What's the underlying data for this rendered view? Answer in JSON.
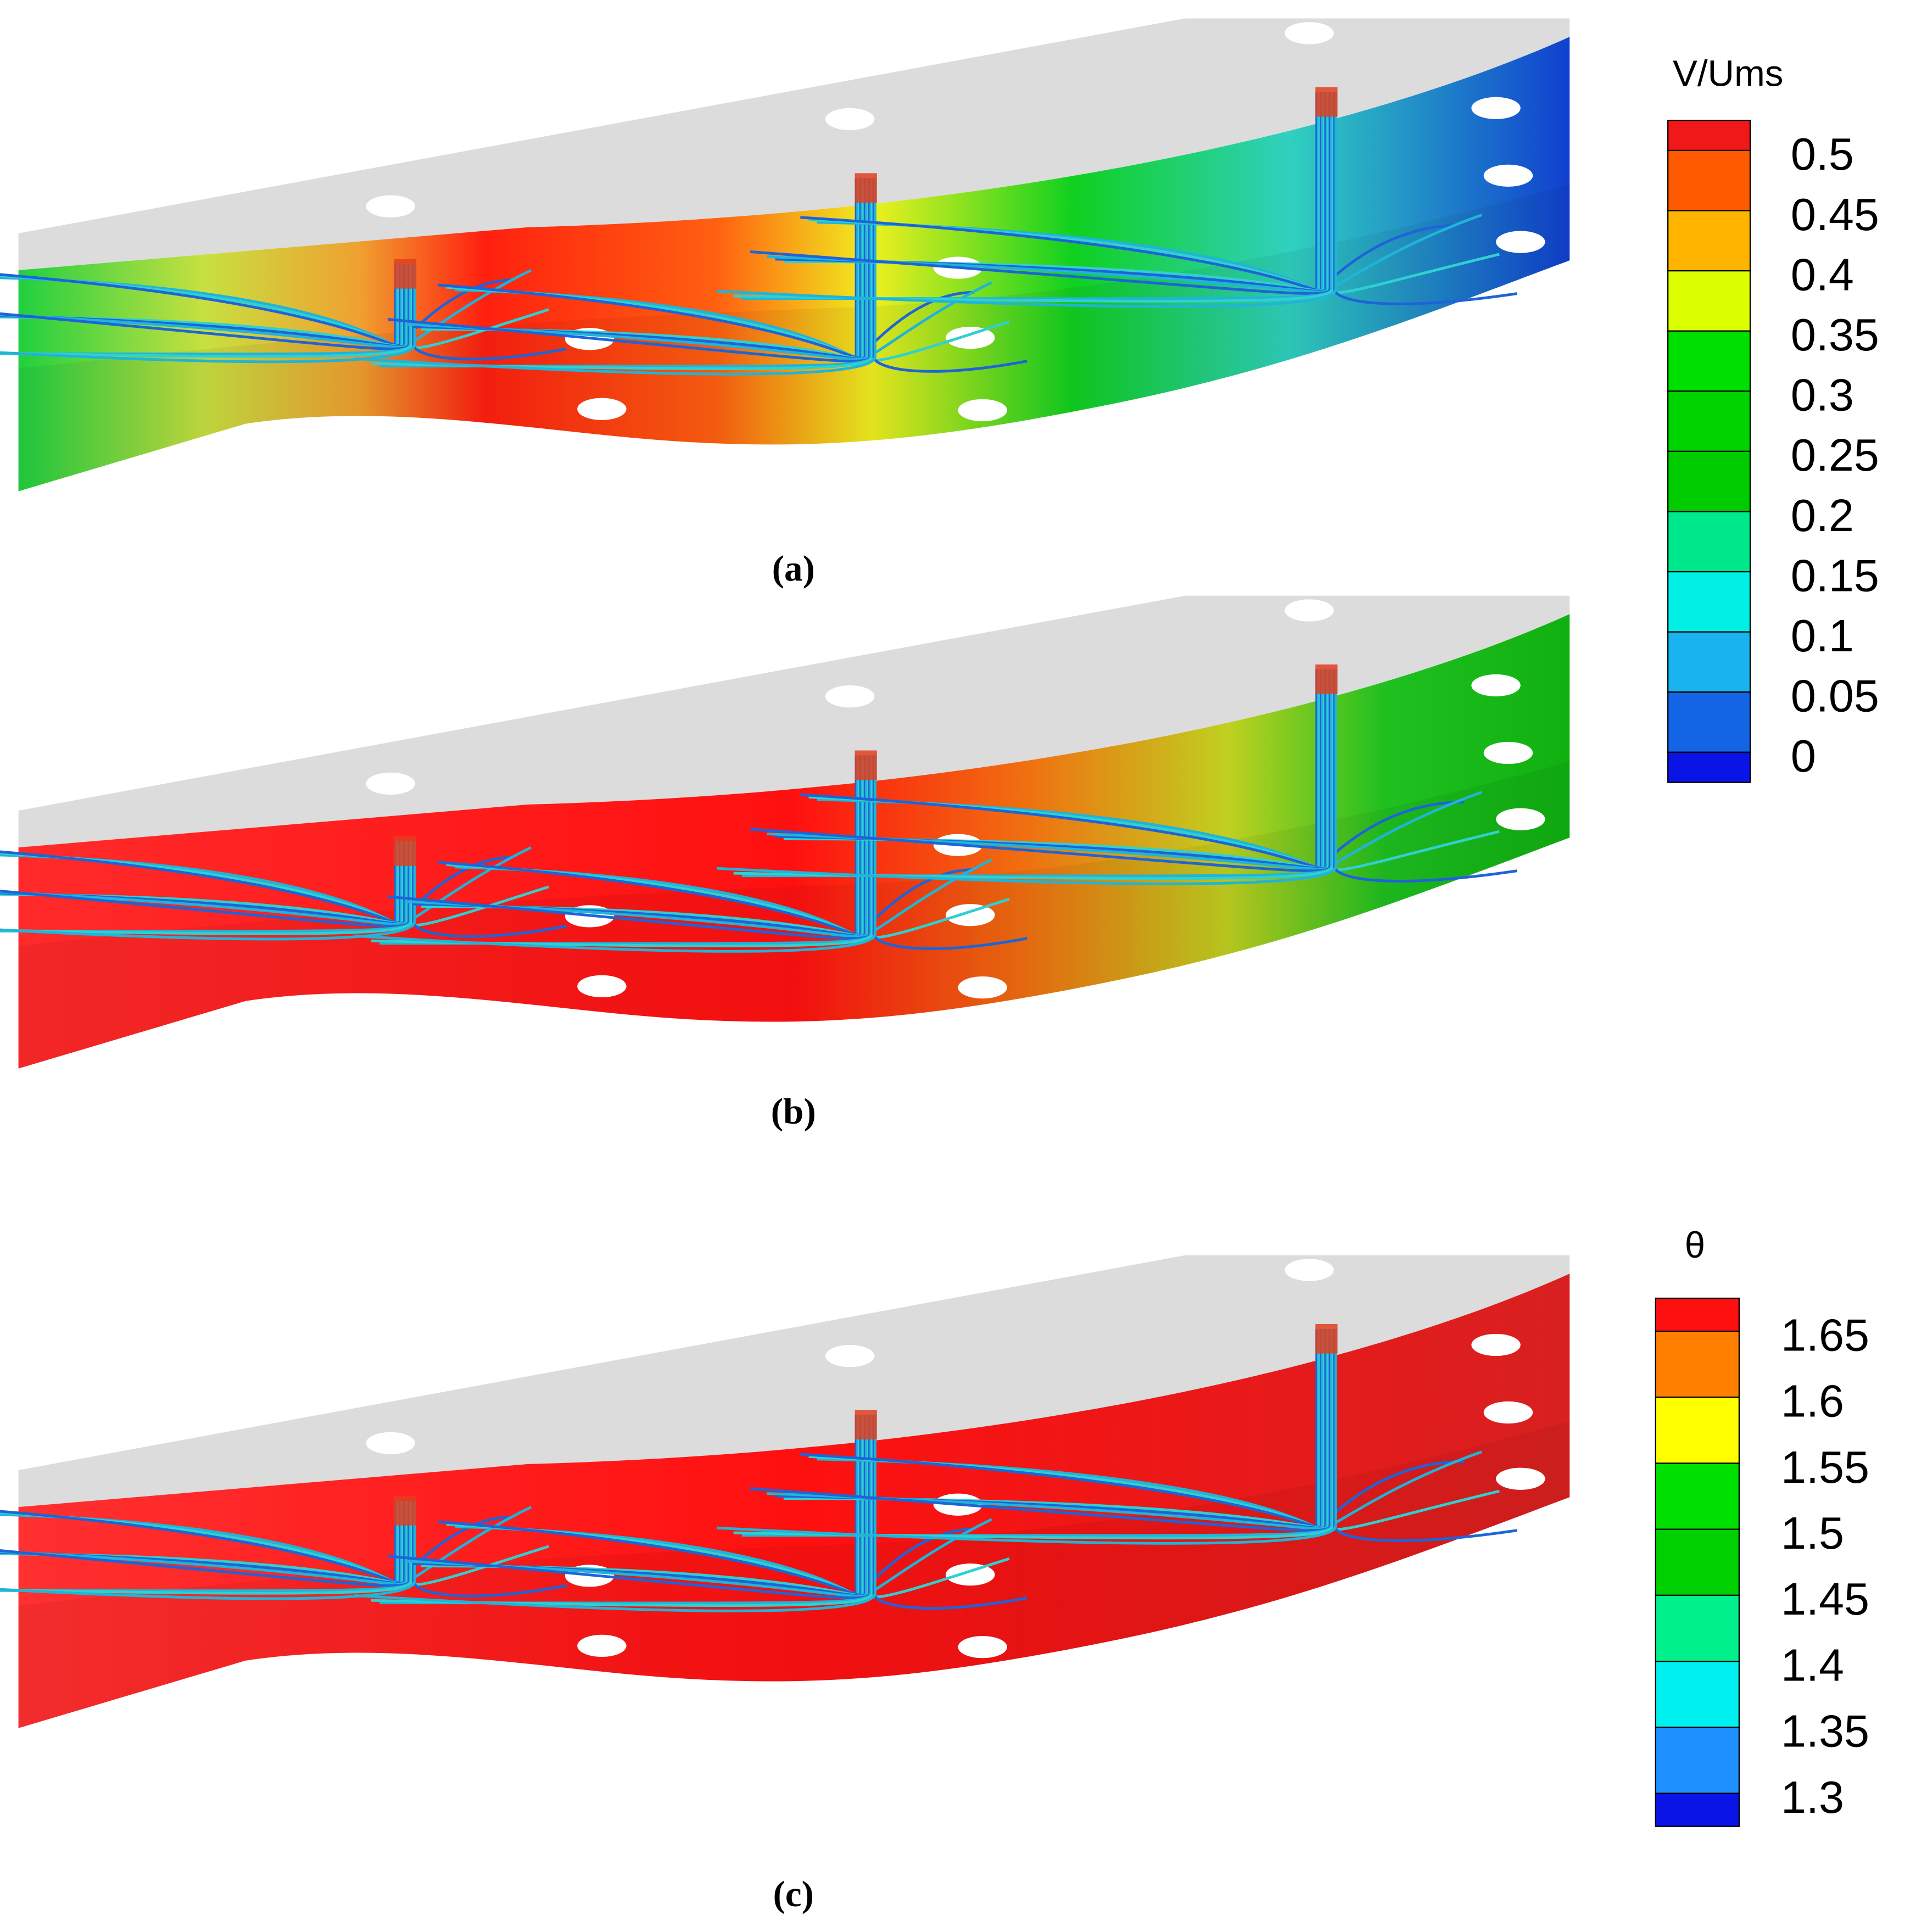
{
  "panels": [
    {
      "label": "(a)"
    },
    {
      "label": "(b)"
    },
    {
      "label": "(c)"
    }
  ],
  "legends": [
    {
      "title": "V/Ums",
      "labels": [
        "0.5",
        "0.45",
        "0.4",
        "0.35",
        "0.3",
        "0.25",
        "0.2",
        "0.15",
        "0.1",
        "0.05",
        "0"
      ],
      "colors": [
        "#f01818",
        "#ff5a00",
        "#ffb400",
        "#dcff00",
        "#00e000",
        "#00d400",
        "#00cc00",
        "#00e88c",
        "#00f0e6",
        "#19b4f0",
        "#1464e6",
        "#0a14e6"
      ]
    },
    {
      "title": "θ",
      "labels": [
        "1.65",
        "1.6",
        "1.55",
        "1.5",
        "1.45",
        "1.4",
        "1.35",
        "1.3"
      ],
      "colors": [
        "#ff1010",
        "#ff8000",
        "#ffff00",
        "#00e000",
        "#00d000",
        "#00f08c",
        "#00f0f0",
        "#1e90ff",
        "#0a14e6"
      ]
    }
  ]
}
